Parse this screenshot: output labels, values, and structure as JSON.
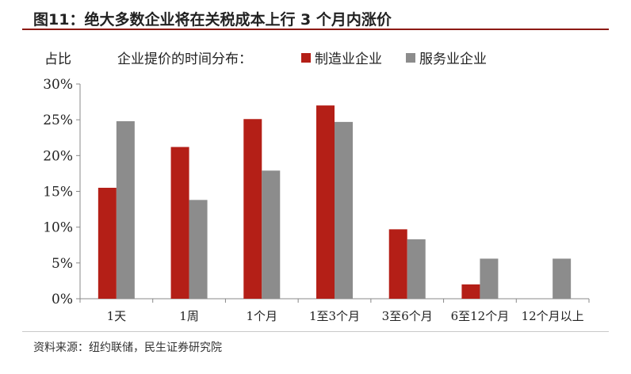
{
  "header": {
    "title": "图11：绝大多数企业将在关税成本上行 3 个月内涨价"
  },
  "footer": {
    "source": "资料来源：纽约联储，民生证券研究院"
  },
  "colors": {
    "manufacturing": "#b41f17",
    "services": "#8c8c8c",
    "title_rule": "#8c1a14"
  },
  "chart_data": {
    "type": "bar",
    "ylabel": "占比",
    "legend_title": "企业提价的时间分布：",
    "legend_position": "top",
    "categories": [
      "1天",
      "1周",
      "1个月",
      "1至3个月",
      "3至6个月",
      "6至12个月",
      "12个月以上"
    ],
    "series": [
      {
        "name": "制造业企业",
        "values": [
          15.5,
          21.2,
          25.1,
          27.0,
          9.7,
          2.0,
          0
        ]
      },
      {
        "name": "服务业企业",
        "values": [
          24.8,
          13.8,
          17.9,
          24.7,
          8.3,
          5.6,
          5.6
        ]
      }
    ],
    "ylim": [
      0,
      30
    ],
    "yticks": [
      "0%",
      "5%",
      "10%",
      "15%",
      "20%",
      "25%",
      "30%"
    ],
    "grid": false
  }
}
